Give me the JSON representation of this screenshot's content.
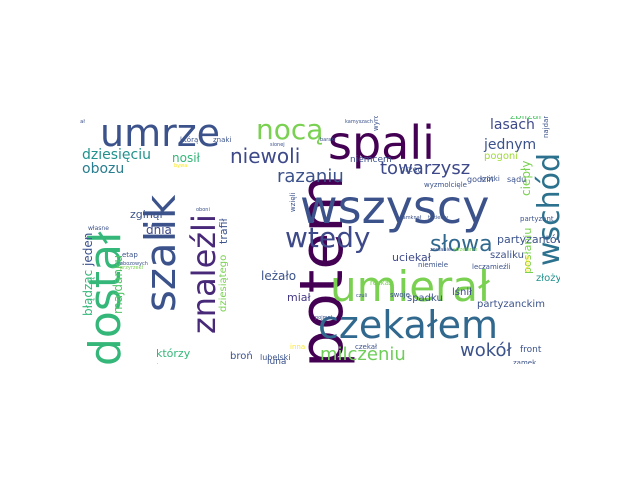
{
  "cloud": {
    "background": "#ffffff",
    "palette": [
      "#440154",
      "#3b528b",
      "#21918c",
      "#5ec962",
      "#fde725"
    ],
    "words": [
      {
        "text": "potem",
        "color": "#440154"
      },
      {
        "text": "wszyscy",
        "color": "#3b528b"
      },
      {
        "text": "umierał",
        "color": "#7ad151"
      },
      {
        "text": "spali",
        "color": "#440154"
      },
      {
        "text": "czekałem",
        "color": "#31688e"
      },
      {
        "text": "dostał",
        "color": "#35b779"
      },
      {
        "text": "szalik",
        "color": "#3b528b"
      },
      {
        "text": "umrze",
        "color": "#3b528b"
      },
      {
        "text": "wschód",
        "color": "#2c728e"
      },
      {
        "text": "znaleźli",
        "color": "#482878"
      },
      {
        "text": "wtedy",
        "color": "#3e4989"
      },
      {
        "text": "nocą",
        "color": "#7ad151"
      },
      {
        "text": "słowa",
        "color": "#31688e"
      },
      {
        "text": "niewoli",
        "color": "#3e4989"
      },
      {
        "text": "razaniu",
        "color": "#3b528b"
      },
      {
        "text": "towarzysz",
        "color": "#3e4989"
      },
      {
        "text": "milczeniu",
        "color": "#6ece58"
      },
      {
        "text": "wokół",
        "color": "#3b528b"
      },
      {
        "text": "dziesięciu",
        "color": "#21918c"
      },
      {
        "text": "obozu",
        "color": "#287d8e"
      },
      {
        "text": "nosił",
        "color": "#35b779"
      },
      {
        "text": "lasach",
        "color": "#3e4989"
      },
      {
        "text": "zbliżał",
        "color": "#52c569"
      },
      {
        "text": "jednym",
        "color": "#3b528b"
      },
      {
        "text": "pogoni",
        "color": "#a0da39"
      },
      {
        "text": "uciekał",
        "color": "#3e4989"
      },
      {
        "text": "leżało",
        "color": "#3b528b"
      },
      {
        "text": "miał",
        "color": "#443983"
      },
      {
        "text": "błądząc",
        "color": "#35b779"
      },
      {
        "text": "jeden",
        "color": "#3b528b"
      },
      {
        "text": "majdanku",
        "color": "#52c569"
      },
      {
        "text": "dnia",
        "color": "#3e4989"
      },
      {
        "text": "zginął",
        "color": "#3b528b"
      },
      {
        "text": "trafił",
        "color": "#3b528b"
      },
      {
        "text": "partyzantów",
        "color": "#3b528b"
      },
      {
        "text": "szaliku",
        "color": "#3b528b"
      },
      {
        "text": "ciepły",
        "color": "#7ad151"
      },
      {
        "text": "posłaniu",
        "color": "#7ad151"
      },
      {
        "text": "złożyć",
        "color": "#21918c"
      },
      {
        "text": "spadku",
        "color": "#3b528b"
      },
      {
        "text": "lśnił",
        "color": "#3e4989"
      },
      {
        "text": "partyzanckim",
        "color": "#3b528b"
      },
      {
        "text": "dziesiątego",
        "color": "#7ad151"
      },
      {
        "text": "którzy",
        "color": "#35b779"
      },
      {
        "text": "broń",
        "color": "#3b528b"
      },
      {
        "text": "luną",
        "color": "#3b528b"
      },
      {
        "text": "lubelski",
        "color": "#3b528b"
      },
      {
        "text": "front",
        "color": "#3b528b"
      },
      {
        "text": "zamek",
        "color": "#3b528b"
      },
      {
        "text": "niemcem",
        "color": "#3b528b"
      },
      {
        "text": "przed",
        "color": "#3b528b"
      },
      {
        "text": "godzin",
        "color": "#3b528b"
      },
      {
        "text": "krótki",
        "color": "#3b528b"
      },
      {
        "text": "sądu",
        "color": "#3b528b"
      },
      {
        "text": "partyzant",
        "color": "#3b528b"
      },
      {
        "text": "wyzmolcięle",
        "color": "#3b528b"
      },
      {
        "text": "niemiele",
        "color": "#3b528b"
      },
      {
        "text": "lecz",
        "color": "#3b528b"
      },
      {
        "text": "zamieźli",
        "color": "#3b528b"
      },
      {
        "text": "swoje",
        "color": "#3b528b"
      },
      {
        "text": "rozkaz",
        "color": "#7ad151"
      },
      {
        "text": "którą",
        "color": "#3b528b"
      },
      {
        "text": "znaki",
        "color": "#3b528b"
      },
      {
        "text": "własne",
        "color": "#3b528b"
      },
      {
        "text": "etap",
        "color": "#3b528b"
      },
      {
        "text": "wyrok",
        "color": "#3b528b"
      },
      {
        "text": "czekał",
        "color": "#3b528b"
      },
      {
        "text": "inna",
        "color": "#fde725"
      },
      {
        "text": "najdanek",
        "color": "#3b528b"
      },
      {
        "text": "wzięli",
        "color": "#3b528b"
      },
      {
        "text": "czytał",
        "color": "#3b528b"
      },
      {
        "text": "kamyszach",
        "color": "#3b528b"
      },
      {
        "text": "baraki",
        "color": "#3b528b"
      },
      {
        "text": "obozowych",
        "color": "#3b528b"
      },
      {
        "text": "przyrzekł",
        "color": "#7ad151"
      },
      {
        "text": "strzelanie",
        "color": "#7ad151"
      },
      {
        "text": "zostanie",
        "color": "#3b528b"
      },
      {
        "text": "takiemy",
        "color": "#3b528b"
      },
      {
        "text": "zamknął",
        "color": "#3b528b"
      },
      {
        "text": "słyszał",
        "color": "#fde725"
      },
      {
        "text": "zarrzyscie",
        "color": "#3b528b"
      },
      {
        "text": "oboni",
        "color": "#3b528b"
      },
      {
        "text": "sionej",
        "color": "#3b528b"
      },
      {
        "text": "bywa",
        "color": "#fde725"
      },
      {
        "text": "czuli",
        "color": "#3b528b"
      },
      {
        "text": "pojmał",
        "color": "#3b528b"
      }
    ]
  }
}
